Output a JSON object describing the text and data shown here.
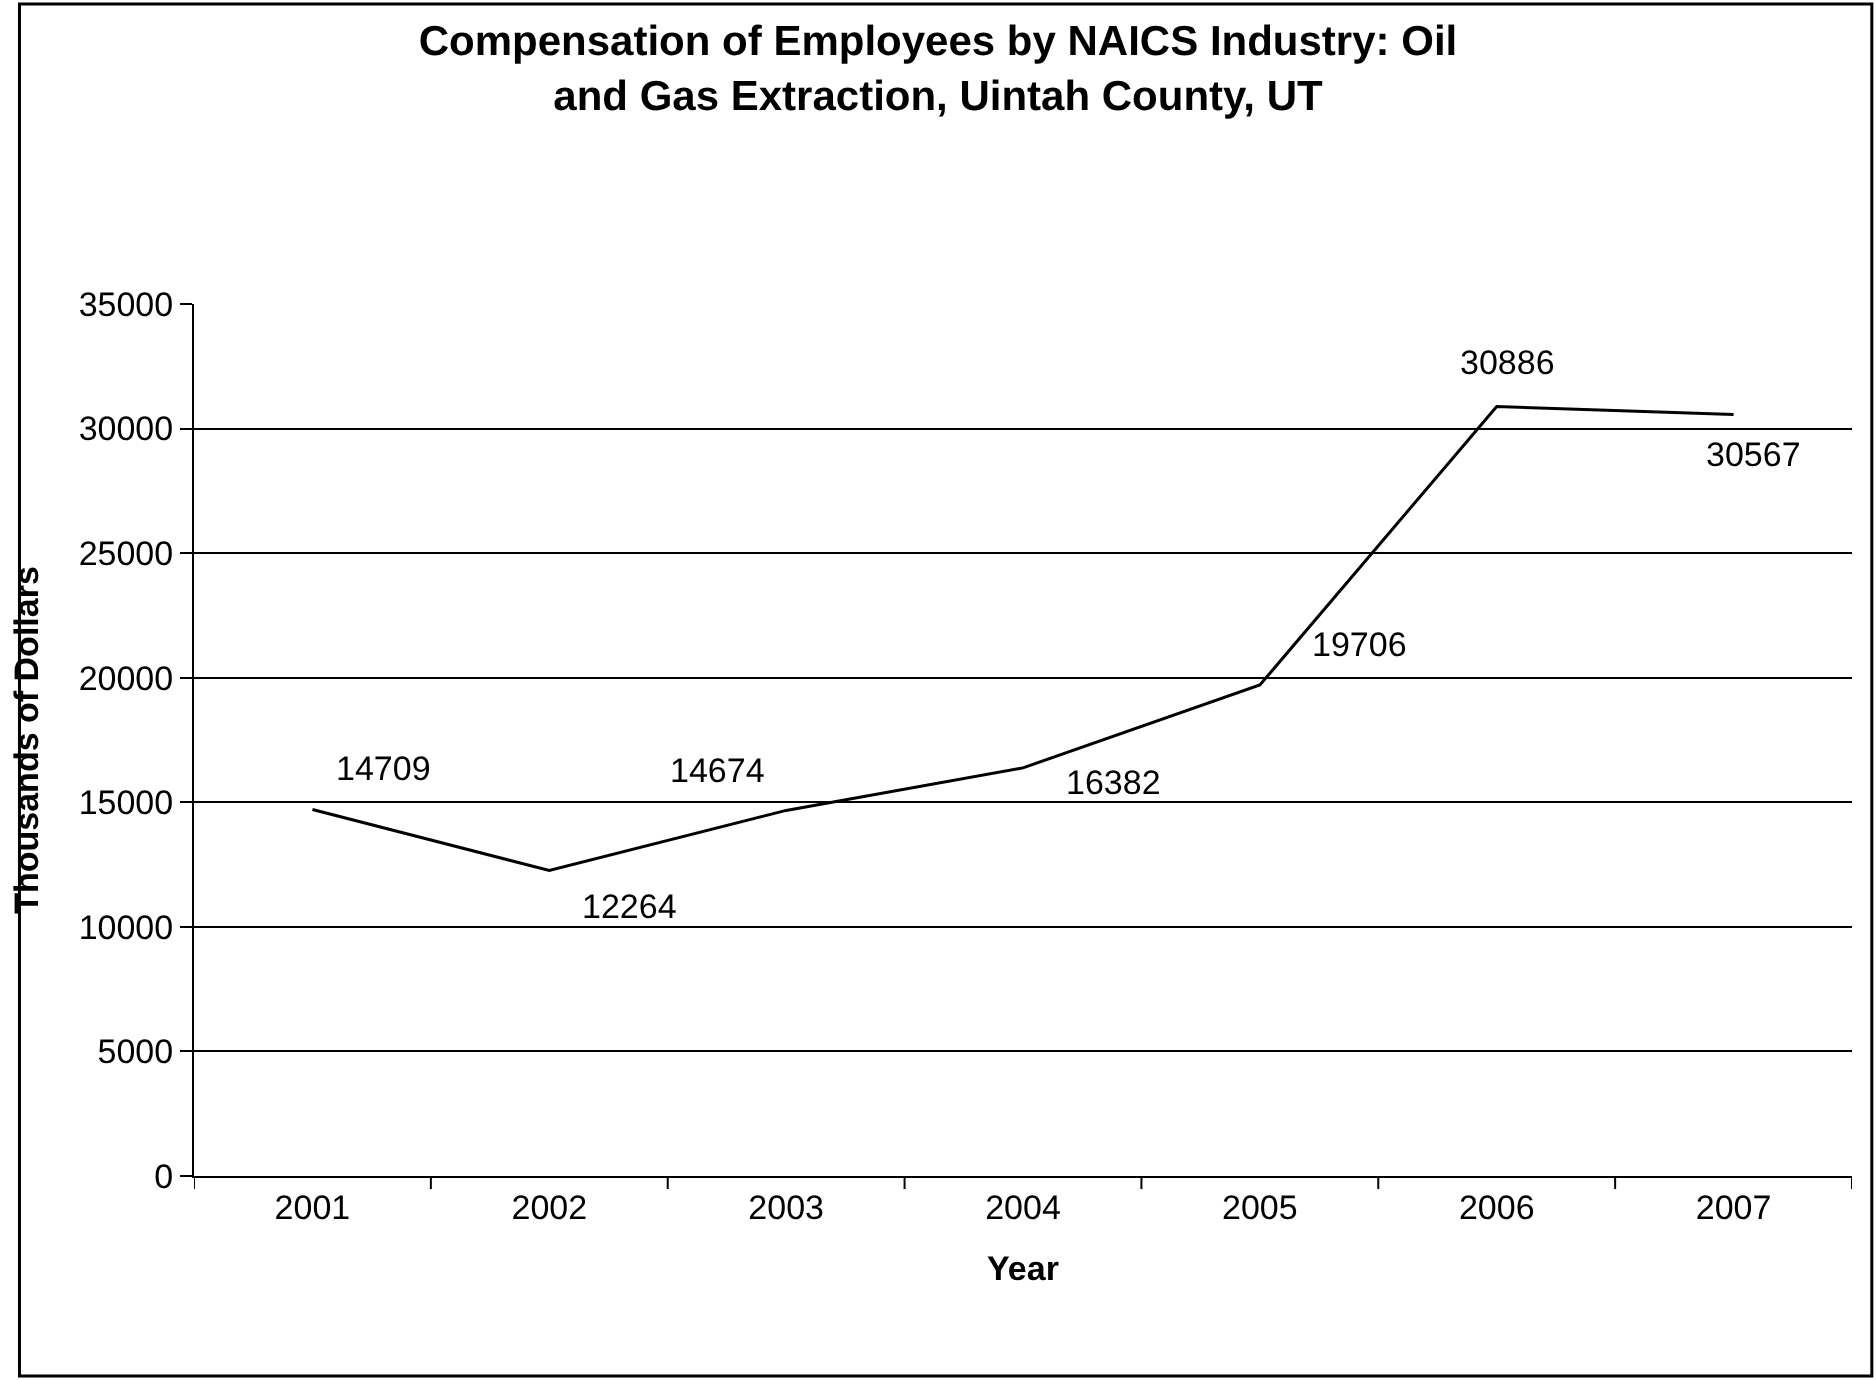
{
  "chart_data": {
    "type": "line",
    "title": "Compensation of Employees by NAICS Industry: Oil\nand Gas Extraction, Uintah County, UT",
    "xlabel": "Year",
    "ylabel": "Thousands of Dollars",
    "categories": [
      "2001",
      "2002",
      "2003",
      "2004",
      "2005",
      "2006",
      "2007"
    ],
    "series": [
      {
        "color": "#000000",
        "values": [
          14709,
          12264,
          14674,
          16382,
          19706,
          30886,
          30567
        ]
      }
    ],
    "ylim": [
      0,
      35000
    ],
    "yticks": [
      0,
      5000,
      10000,
      15000,
      20000,
      25000,
      30000,
      35000
    ],
    "grid": "y",
    "legend": false,
    "marker": "none",
    "line_style": "solid",
    "data_labels": true
  }
}
